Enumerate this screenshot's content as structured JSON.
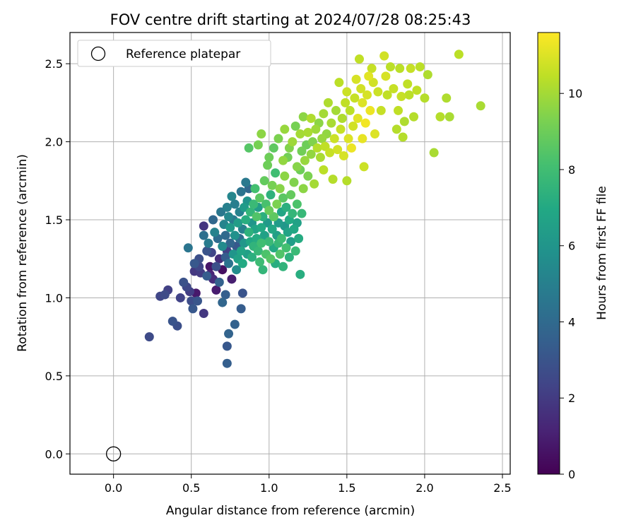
{
  "chart_data": {
    "type": "scatter",
    "title": "FOV centre drift starting at 2024/07/28 08:25:43",
    "xlabel": "Angular distance from reference (arcmin)",
    "ylabel": "Rotation from reference (arcmin)",
    "xlim": [
      -0.28,
      2.55
    ],
    "ylim": [
      -0.13,
      2.7
    ],
    "xticks": [
      0.0,
      0.5,
      1.0,
      1.5,
      2.0,
      2.5
    ],
    "yticks": [
      0.0,
      0.5,
      1.0,
      1.5,
      2.0,
      2.5
    ],
    "xtick_labels": [
      "0.0",
      "0.5",
      "1.0",
      "1.5",
      "2.0",
      "2.5"
    ],
    "ytick_labels": [
      "0.0",
      "0.5",
      "1.0",
      "1.5",
      "2.0",
      "2.5"
    ],
    "grid": true,
    "colormap": "viridis",
    "colorbar": {
      "label": "Hours from first FF file",
      "range": [
        0,
        11.6
      ],
      "ticks": [
        0,
        2,
        4,
        6,
        8,
        10
      ],
      "tick_labels": [
        "0",
        "2",
        "4",
        "6",
        "8",
        "10"
      ]
    },
    "legend": {
      "location": "top-left",
      "entries": [
        {
          "label": "Reference platepar",
          "marker": "open-circle",
          "x": 0.0,
          "y": 0.0
        }
      ]
    },
    "points": [
      [
        0.23,
        0.75,
        2.6
      ],
      [
        0.3,
        1.01,
        2.4
      ],
      [
        0.33,
        1.02,
        2.6
      ],
      [
        0.35,
        1.05,
        2.2
      ],
      [
        0.38,
        0.85,
        3.0
      ],
      [
        0.41,
        0.82,
        2.8
      ],
      [
        0.43,
        1.0,
        2.3
      ],
      [
        0.45,
        1.1,
        2.9
      ],
      [
        0.47,
        1.07,
        2.5
      ],
      [
        0.49,
        1.04,
        2.1
      ],
      [
        0.5,
        0.98,
        2.7
      ],
      [
        0.51,
        0.93,
        3.2
      ],
      [
        0.52,
        1.17,
        1.9
      ],
      [
        0.53,
        1.03,
        0.8
      ],
      [
        0.54,
        0.98,
        3.1
      ],
      [
        0.55,
        1.2,
        2.4
      ],
      [
        0.56,
        1.16,
        2.0
      ],
      [
        0.58,
        0.9,
        1.9
      ],
      [
        0.6,
        1.14,
        3.4
      ],
      [
        0.62,
        1.2,
        0.7
      ],
      [
        0.64,
        1.12,
        1.5
      ],
      [
        0.66,
        1.05,
        0.9
      ],
      [
        0.68,
        1.1,
        3.6
      ],
      [
        0.7,
        0.97,
        3.8
      ],
      [
        0.72,
        1.02,
        3.5
      ],
      [
        0.73,
        0.69,
        3.2
      ],
      [
        0.73,
        0.58,
        3.5
      ],
      [
        0.74,
        0.77,
        3.7
      ],
      [
        0.78,
        0.83,
        3.6
      ],
      [
        0.82,
        0.93,
        3.4
      ],
      [
        0.83,
        1.03,
        3.0
      ],
      [
        0.48,
        1.32,
        4.5
      ],
      [
        0.52,
        1.22,
        3.2
      ],
      [
        0.55,
        1.25,
        2.8
      ],
      [
        0.58,
        1.4,
        4.2
      ],
      [
        0.58,
        1.46,
        1.8
      ],
      [
        0.6,
        1.3,
        3.0
      ],
      [
        0.61,
        1.35,
        4.8
      ],
      [
        0.62,
        1.15,
        1.2
      ],
      [
        0.63,
        1.29,
        2.4
      ],
      [
        0.64,
        1.5,
        3.9
      ],
      [
        0.65,
        1.42,
        5.1
      ],
      [
        0.66,
        1.2,
        2.8
      ],
      [
        0.67,
        1.38,
        4.1
      ],
      [
        0.68,
        1.25,
        1.5
      ],
      [
        0.69,
        1.55,
        4.6
      ],
      [
        0.7,
        1.33,
        5.5
      ],
      [
        0.7,
        1.18,
        0.5
      ],
      [
        0.71,
        1.47,
        5.2
      ],
      [
        0.72,
        1.4,
        4.0
      ],
      [
        0.72,
        1.26,
        3.4
      ],
      [
        0.73,
        1.3,
        2.2
      ],
      [
        0.73,
        1.58,
        5.0
      ],
      [
        0.74,
        1.22,
        4.4
      ],
      [
        0.74,
        1.52,
        5.4
      ],
      [
        0.75,
        1.35,
        3.8
      ],
      [
        0.75,
        1.45,
        6.2
      ],
      [
        0.76,
        1.65,
        5.3
      ],
      [
        0.76,
        1.12,
        1.0
      ],
      [
        0.77,
        1.28,
        6.0
      ],
      [
        0.77,
        1.5,
        4.8
      ],
      [
        0.78,
        1.4,
        5.8
      ],
      [
        0.78,
        1.6,
        4.9
      ],
      [
        0.79,
        1.18,
        5.6
      ],
      [
        0.79,
        1.33,
        3.2
      ],
      [
        0.8,
        1.48,
        6.4
      ],
      [
        0.8,
        1.25,
        6.6
      ],
      [
        0.81,
        1.55,
        5.1
      ],
      [
        0.81,
        1.38,
        4.2
      ],
      [
        0.82,
        1.68,
        4.4
      ],
      [
        0.82,
        1.3,
        6.8
      ],
      [
        0.83,
        1.44,
        5.0
      ],
      [
        0.83,
        1.22,
        7.0
      ],
      [
        0.84,
        1.58,
        6.3
      ],
      [
        0.84,
        1.35,
        6.1
      ],
      [
        0.85,
        1.74,
        4.7
      ],
      [
        0.85,
        1.5,
        7.2
      ],
      [
        0.86,
        1.28,
        6.5
      ],
      [
        0.86,
        1.62,
        5.9
      ],
      [
        0.87,
        1.42,
        7.4
      ],
      [
        0.87,
        1.7,
        3.9
      ],
      [
        0.88,
        1.36,
        6.9
      ],
      [
        0.88,
        1.55,
        7.6
      ],
      [
        0.89,
        1.26,
        7.3
      ],
      [
        0.89,
        1.48,
        6.0
      ],
      [
        0.9,
        1.6,
        7.8
      ],
      [
        0.9,
        1.33,
        7.5
      ],
      [
        0.91,
        1.44,
        6.7
      ],
      [
        0.91,
        1.7,
        8.1
      ],
      [
        0.92,
        1.38,
        7.1
      ],
      [
        0.92,
        1.52,
        8.4
      ],
      [
        0.93,
        1.3,
        7.7
      ],
      [
        0.93,
        1.58,
        6.4
      ],
      [
        0.94,
        1.23,
        7.9
      ],
      [
        0.94,
        1.64,
        8.6
      ],
      [
        0.95,
        1.45,
        7.0
      ],
      [
        0.95,
        1.35,
        8.0
      ],
      [
        0.96,
        1.18,
        7.6
      ],
      [
        0.96,
        1.52,
        7.3
      ],
      [
        0.97,
        1.75,
        8.8
      ],
      [
        0.97,
        1.4,
        6.6
      ],
      [
        0.98,
        1.6,
        8.2
      ],
      [
        0.98,
        1.28,
        8.3
      ],
      [
        0.99,
        1.48,
        6.2
      ],
      [
        0.99,
        1.85,
        9.0
      ],
      [
        1.0,
        1.36,
        7.8
      ],
      [
        1.0,
        1.56,
        8.9
      ],
      [
        1.01,
        1.25,
        8.5
      ],
      [
        1.01,
        1.66,
        7.4
      ],
      [
        1.02,
        1.44,
        6.9
      ],
      [
        1.02,
        1.72,
        9.2
      ],
      [
        1.03,
        1.32,
        7.0
      ],
      [
        1.03,
        1.52,
        8.7
      ],
      [
        1.04,
        1.8,
        8.0
      ],
      [
        1.04,
        1.22,
        7.2
      ],
      [
        1.05,
        1.4,
        6.5
      ],
      [
        1.05,
        1.6,
        9.3
      ],
      [
        1.06,
        1.35,
        7.7
      ],
      [
        1.06,
        1.48,
        6.3
      ],
      [
        1.07,
        1.7,
        9.5
      ],
      [
        1.07,
        1.28,
        8.4
      ],
      [
        1.08,
        1.55,
        6.8
      ],
      [
        1.08,
        1.38,
        7.9
      ],
      [
        1.09,
        1.64,
        8.6
      ],
      [
        1.09,
        1.2,
        7.5
      ],
      [
        1.1,
        1.46,
        6.1
      ],
      [
        1.1,
        1.78,
        9.6
      ],
      [
        1.11,
        1.32,
        8.1
      ],
      [
        1.11,
        1.58,
        7.3
      ],
      [
        1.12,
        1.42,
        6.7
      ],
      [
        1.12,
        1.9,
        9.1
      ],
      [
        1.13,
        1.5,
        7.0
      ],
      [
        1.13,
        1.26,
        7.4
      ],
      [
        1.14,
        1.66,
        8.8
      ],
      [
        1.14,
        1.36,
        6.4
      ],
      [
        1.15,
        1.54,
        7.6
      ],
      [
        1.16,
        1.44,
        6.9
      ],
      [
        1.16,
        1.74,
        9.4
      ],
      [
        1.17,
        1.3,
        7.8
      ],
      [
        1.18,
        1.6,
        8.3
      ],
      [
        1.18,
        1.48,
        6.6
      ],
      [
        1.19,
        1.38,
        7.1
      ],
      [
        1.2,
        1.82,
        9.0
      ],
      [
        1.2,
        1.15,
        7.2
      ],
      [
        1.21,
        1.54,
        7.7
      ],
      [
        1.22,
        1.7,
        9.6
      ],
      [
        0.87,
        1.96,
        8.5
      ],
      [
        0.93,
        1.98,
        9.2
      ],
      [
        0.95,
        2.05,
        9.6
      ],
      [
        1.0,
        1.9,
        9.0
      ],
      [
        1.03,
        1.96,
        8.7
      ],
      [
        1.06,
        2.02,
        9.3
      ],
      [
        1.09,
        1.88,
        9.7
      ],
      [
        1.1,
        2.08,
        9.8
      ],
      [
        1.13,
        1.96,
        9.4
      ],
      [
        1.15,
        2.0,
        9.9
      ],
      [
        1.17,
        2.1,
        9.2
      ],
      [
        1.18,
        1.84,
        9.5
      ],
      [
        1.2,
        2.05,
        10.0
      ],
      [
        1.21,
        1.94,
        9.1
      ],
      [
        1.22,
        2.16,
        9.6
      ],
      [
        1.23,
        1.88,
        9.8
      ],
      [
        1.24,
        1.98,
        9.0
      ],
      [
        1.25,
        2.06,
        10.1
      ],
      [
        1.25,
        1.78,
        9.3
      ],
      [
        1.27,
        1.92,
        9.7
      ],
      [
        1.27,
        2.15,
        10.2
      ],
      [
        1.28,
        2.0,
        9.4
      ],
      [
        1.29,
        1.73,
        10.0
      ],
      [
        1.3,
        2.08,
        9.9
      ],
      [
        1.31,
        1.96,
        10.3
      ],
      [
        1.32,
        2.12,
        9.6
      ],
      [
        1.33,
        1.9,
        10.1
      ],
      [
        1.34,
        2.02,
        9.8
      ],
      [
        1.35,
        1.82,
        10.4
      ],
      [
        1.35,
        2.18,
        10.0
      ],
      [
        1.36,
        1.97,
        10.5
      ],
      [
        1.37,
        2.05,
        9.7
      ],
      [
        1.38,
        2.25,
        10.2
      ],
      [
        1.39,
        1.93,
        10.6
      ],
      [
        1.4,
        2.12,
        10.1
      ],
      [
        1.41,
        1.76,
        10.3
      ],
      [
        1.42,
        2.02,
        10.7
      ],
      [
        1.43,
        2.2,
        10.0
      ],
      [
        1.44,
        1.95,
        10.8
      ],
      [
        1.45,
        2.38,
        10.4
      ],
      [
        1.46,
        2.08,
        10.6
      ],
      [
        1.47,
        2.15,
        10.2
      ],
      [
        1.48,
        1.91,
        10.9
      ],
      [
        1.49,
        2.25,
        10.5
      ],
      [
        1.5,
        1.75,
        10.3
      ],
      [
        1.5,
        2.32,
        10.7
      ],
      [
        1.51,
        2.02,
        11.0
      ],
      [
        1.52,
        2.2,
        10.4
      ],
      [
        1.53,
        1.96,
        11.3
      ],
      [
        1.54,
        2.1,
        10.8
      ],
      [
        1.55,
        2.28,
        10.6
      ],
      [
        1.56,
        2.4,
        10.9
      ],
      [
        1.57,
        2.15,
        11.1
      ],
      [
        1.58,
        2.53,
        10.5
      ],
      [
        1.59,
        2.34,
        10.8
      ],
      [
        1.6,
        2.02,
        11.2
      ],
      [
        1.6,
        2.25,
        11.0
      ],
      [
        1.61,
        1.84,
        10.7
      ],
      [
        1.62,
        2.12,
        11.4
      ],
      [
        1.63,
        2.3,
        10.9
      ],
      [
        1.64,
        2.42,
        11.1
      ],
      [
        1.65,
        2.2,
        11.3
      ],
      [
        1.66,
        2.47,
        10.6
      ],
      [
        1.67,
        2.38,
        10.8
      ],
      [
        1.68,
        2.05,
        11.0
      ],
      [
        1.7,
        2.32,
        10.7
      ],
      [
        1.72,
        2.2,
        10.6
      ],
      [
        1.74,
        2.55,
        10.8
      ],
      [
        1.75,
        2.42,
        10.9
      ],
      [
        1.76,
        2.3,
        10.5
      ],
      [
        1.78,
        2.48,
        10.4
      ],
      [
        1.8,
        2.34,
        10.6
      ],
      [
        1.82,
        2.08,
        10.3
      ],
      [
        1.83,
        2.2,
        10.5
      ],
      [
        1.84,
        2.47,
        10.4
      ],
      [
        1.85,
        2.29,
        10.6
      ],
      [
        1.86,
        2.03,
        10.3
      ],
      [
        1.87,
        2.13,
        10.2
      ],
      [
        1.89,
        2.37,
        10.5
      ],
      [
        1.9,
        2.3,
        10.4
      ],
      [
        1.91,
        2.47,
        10.6
      ],
      [
        1.93,
        2.16,
        10.3
      ],
      [
        1.95,
        2.33,
        10.5
      ],
      [
        1.97,
        2.48,
        10.4
      ],
      [
        2.0,
        2.28,
        10.3
      ],
      [
        2.02,
        2.43,
        10.2
      ],
      [
        2.06,
        1.93,
        10.1
      ],
      [
        2.1,
        2.16,
        10.3
      ],
      [
        2.14,
        2.28,
        10.2
      ],
      [
        2.16,
        2.16,
        10.1
      ],
      [
        2.22,
        2.56,
        10.4
      ],
      [
        2.36,
        2.23,
        10.1
      ]
    ]
  }
}
